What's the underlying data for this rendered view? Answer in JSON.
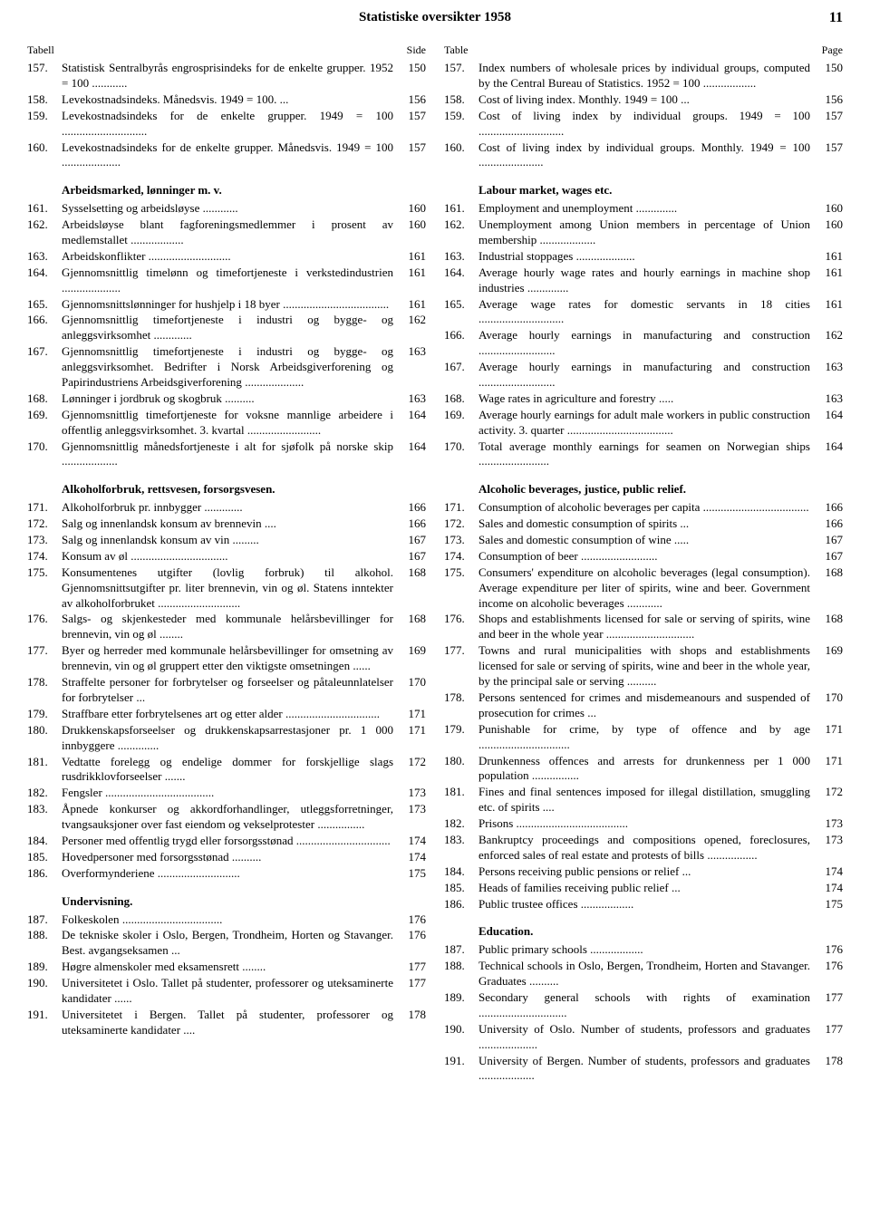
{
  "header": {
    "title": "Statistiske oversikter 1958",
    "pageNumber": "11"
  },
  "left": {
    "colHeader": {
      "num": "Tabell",
      "page": "Side"
    },
    "sections": [
      {
        "title": null,
        "entries": [
          {
            "num": "157.",
            "text": "Statistisk Sentralbyrås engrosprisindeks for de enkelte grupper. 1952 = 100",
            "page": "150"
          },
          {
            "num": "158.",
            "text": "Levekostnadsindeks. Månedsvis. 1949 = 100.",
            "page": "156"
          },
          {
            "num": "159.",
            "text": "Levekostnadsindeks for de enkelte grupper. 1949 = 100",
            "page": "157"
          },
          {
            "num": "160.",
            "text": "Levekostnadsindeks for de enkelte grupper. Månedsvis. 1949 = 100",
            "page": "157"
          }
        ]
      },
      {
        "title": "Arbeidsmarked, lønninger m. v.",
        "entries": [
          {
            "num": "161.",
            "text": "Sysselsetting og arbeidsløyse",
            "page": "160"
          },
          {
            "num": "162.",
            "text": "Arbeidsløyse blant fagforeningsmedlemmer i prosent av medlemstallet",
            "page": "160"
          },
          {
            "num": "163.",
            "text": "Arbeidskonflikter",
            "page": "161"
          },
          {
            "num": "164.",
            "text": "Gjennomsnittlig timelønn og timefortjeneste i verkstedindustrien",
            "page": "161"
          },
          {
            "num": "165.",
            "text": "Gjennomsnittslønninger for hushjelp i 18 byer",
            "page": "161"
          },
          {
            "num": "166.",
            "text": "Gjennomsnittlig timefortjeneste i industri og bygge- og anleggsvirksomhet",
            "page": "162"
          },
          {
            "num": "167.",
            "text": "Gjennomsnittlig timefortjeneste i industri og bygge- og anleggsvirksomhet. Bedrifter i Norsk Arbeidsgiverforening og Papirindustriens Arbeidsgiverforening",
            "page": "163"
          },
          {
            "num": "168.",
            "text": "Lønninger i jordbruk og skogbruk",
            "page": "163"
          },
          {
            "num": "169.",
            "text": "Gjennomsnittlig timefortjeneste for voksne mannlige arbeidere i offentlig anleggsvirksomhet. 3. kvartal",
            "page": "164"
          },
          {
            "num": "170.",
            "text": "Gjennomsnittlig månedsfortjeneste i alt for sjøfolk på norske skip",
            "page": "164"
          }
        ]
      },
      {
        "title": "Alkoholforbruk, rettsvesen, forsorgsvesen.",
        "entries": [
          {
            "num": "171.",
            "text": "Alkoholforbruk pr. innbygger",
            "page": "166"
          },
          {
            "num": "172.",
            "text": "Salg og innenlandsk konsum av brennevin",
            "page": "166"
          },
          {
            "num": "173.",
            "text": "Salg og innenlandsk konsum av vin",
            "page": "167"
          },
          {
            "num": "174.",
            "text": "Konsum av øl",
            "page": "167"
          },
          {
            "num": "175.",
            "text": "Konsumentenes utgifter (lovlig forbruk) til alkohol. Gjennomsnittsutgifter pr. liter brennevin, vin og øl. Statens inntekter av alkoholforbruket",
            "page": "168"
          },
          {
            "num": "176.",
            "text": "Salgs- og skjenkesteder med kommunale helårsbevillinger for brennevin, vin og øl",
            "page": "168"
          },
          {
            "num": "177.",
            "text": "Byer og herreder med kommunale helårsbevillinger for omsetning av brennevin, vin og øl gruppert etter den viktigste omsetningen",
            "page": "169"
          },
          {
            "num": "178.",
            "text": "Straffelte personer for forbrytelser og forseelser og påtaleunnlatelser for forbrytelser",
            "page": "170"
          },
          {
            "num": "179.",
            "text": "Straffbare etter forbrytelsenes art og etter alder",
            "page": "171"
          },
          {
            "num": "180.",
            "text": "Drukkenskapsforseelser og drukkenskapsarrestasjoner pr. 1 000 innbyggere",
            "page": "171"
          },
          {
            "num": "181.",
            "text": "Vedtatte forelegg og endelige dommer for forskjellige slags rusdrikklovforseelser",
            "page": "172"
          },
          {
            "num": "182.",
            "text": "Fengsler",
            "page": "173"
          },
          {
            "num": "183.",
            "text": "Åpnede konkurser og akkordforhandlinger, utleggsforretninger, tvangsauksjoner over fast eiendom og vekselprotester",
            "page": "173"
          },
          {
            "num": "184.",
            "text": "Personer med offentlig trygd eller forsorgsstønad",
            "page": "174"
          },
          {
            "num": "185.",
            "text": "Hovedpersoner med forsorgsstønad",
            "page": "174"
          },
          {
            "num": "186.",
            "text": "Overformynderiene",
            "page": "175"
          }
        ]
      },
      {
        "title": "Undervisning.",
        "entries": [
          {
            "num": "187.",
            "text": "Folkeskolen",
            "page": "176"
          },
          {
            "num": "188.",
            "text": "De tekniske skoler i Oslo, Bergen, Trondheim, Horten og Stavanger. Best. avgangseksamen",
            "page": "176"
          },
          {
            "num": "189.",
            "text": "Høgre almenskoler med eksamensrett",
            "page": "177"
          },
          {
            "num": "190.",
            "text": "Universitetet i Oslo. Tallet på studenter, professorer og uteksaminerte kandidater",
            "page": "177"
          },
          {
            "num": "191.",
            "text": "Universitetet i Bergen. Tallet på studenter, professorer og uteksaminerte kandidater",
            "page": "178"
          }
        ]
      }
    ]
  },
  "right": {
    "colHeader": {
      "num": "Table",
      "page": "Page"
    },
    "sections": [
      {
        "title": null,
        "entries": [
          {
            "num": "157.",
            "text": "Index numbers of wholesale prices by individual groups, computed by the Central Bureau of Statistics. 1952 = 100",
            "page": "150"
          },
          {
            "num": "158.",
            "text": "Cost of living index. Monthly. 1949 = 100",
            "page": "156"
          },
          {
            "num": "159.",
            "text": "Cost of living index by individual groups. 1949 = 100",
            "page": "157"
          },
          {
            "num": "160.",
            "text": "Cost of living index by individual groups. Monthly. 1949 = 100",
            "page": "157"
          }
        ]
      },
      {
        "title": "Labour market, wages etc.",
        "entries": [
          {
            "num": "161.",
            "text": "Employment and unemployment",
            "page": "160"
          },
          {
            "num": "162.",
            "text": "Unemployment among Union members in percentage of Union membership",
            "page": "160"
          },
          {
            "num": "163.",
            "text": "Industrial stoppages",
            "page": "161"
          },
          {
            "num": "164.",
            "text": "Average hourly wage rates and hourly earnings in machine shop industries",
            "page": "161"
          },
          {
            "num": "165.",
            "text": "Average wage rates for domestic servants in 18 cities",
            "page": "161"
          },
          {
            "num": "166.",
            "text": "Average hourly earnings in manufacturing and construction",
            "page": "162"
          },
          {
            "num": "167.",
            "text": "Average hourly earnings in manufacturing and construction",
            "page": "163"
          },
          {
            "num": "168.",
            "text": "Wage rates in agriculture and forestry",
            "page": "163"
          },
          {
            "num": "169.",
            "text": "Average hourly earnings for adult male workers in public construction activity. 3. quarter",
            "page": "164"
          },
          {
            "num": "170.",
            "text": "Total average monthly earnings for seamen on Norwegian ships",
            "page": "164"
          }
        ]
      },
      {
        "title": "Alcoholic beverages, justice, public relief.",
        "entries": [
          {
            "num": "171.",
            "text": "Consumption of alcoholic beverages per capita",
            "page": "166"
          },
          {
            "num": "172.",
            "text": "Sales and domestic consumption of spirits",
            "page": "166"
          },
          {
            "num": "173.",
            "text": "Sales and domestic consumption of wine",
            "page": "167"
          },
          {
            "num": "174.",
            "text": "Consumption of beer",
            "page": "167"
          },
          {
            "num": "175.",
            "text": "Consumers' expenditure on alcoholic beverages (legal consumption). Average expenditure per liter of spirits, wine and beer. Government income on alcoholic beverages",
            "page": "168"
          },
          {
            "num": "176.",
            "text": "Shops and establishments licensed for sale or serving of spirits, wine and beer in the whole year",
            "page": "168"
          },
          {
            "num": "177.",
            "text": "Towns and rural municipalities with shops and establishments licensed for sale or serving of spirits, wine and beer in the whole year, by the principal sale or serving",
            "page": "169"
          },
          {
            "num": "178.",
            "text": "Persons sentenced for crimes and misdemeanours and suspended of prosecution for crimes",
            "page": "170"
          },
          {
            "num": "179.",
            "text": "Punishable for crime, by type of offence and by age",
            "page": "171"
          },
          {
            "num": "180.",
            "text": "Drunkenness offences and arrests for drunkenness per 1 000 population",
            "page": "171"
          },
          {
            "num": "181.",
            "text": "Fines and final sentences imposed for illegal distillation, smuggling etc. of spirits",
            "page": "172"
          },
          {
            "num": "182.",
            "text": "Prisons",
            "page": "173"
          },
          {
            "num": "183.",
            "text": "Bankruptcy proceedings and compositions opened, foreclosures, enforced sales of real estate and protests of bills",
            "page": "173"
          },
          {
            "num": "184.",
            "text": "Persons receiving public pensions or relief",
            "page": "174"
          },
          {
            "num": "185.",
            "text": "Heads of families receiving public relief",
            "page": "174"
          },
          {
            "num": "186.",
            "text": "Public trustee offices",
            "page": "175"
          }
        ]
      },
      {
        "title": "Education.",
        "entries": [
          {
            "num": "187.",
            "text": "Public primary schools",
            "page": "176"
          },
          {
            "num": "188.",
            "text": "Technical schools in Oslo, Bergen, Trondheim, Horten and Stavanger. Graduates",
            "page": "176"
          },
          {
            "num": "189.",
            "text": "Secondary general schools with rights of examination",
            "page": "177"
          },
          {
            "num": "190.",
            "text": "University of Oslo. Number of students, professors and graduates",
            "page": "177"
          },
          {
            "num": "191.",
            "text": "University of Bergen. Number of students, professors and graduates",
            "page": "178"
          }
        ]
      }
    ]
  }
}
